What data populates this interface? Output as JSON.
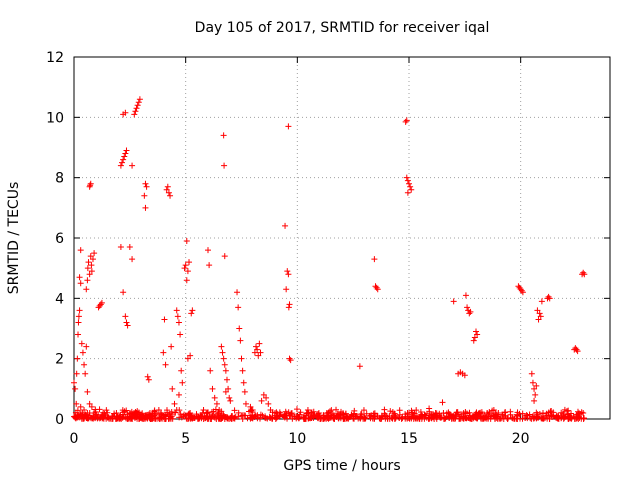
{
  "chart_data": {
    "type": "scatter",
    "title": "Day 105 of 2017, SRMTID for receiver iqal",
    "xlabel": "GPS time / hours",
    "ylabel": "SRMTID / TECUs",
    "xlim": [
      0,
      24
    ],
    "ylim": [
      0,
      12
    ],
    "xticks": [
      0,
      5,
      10,
      15,
      20
    ],
    "yticks": [
      0,
      2,
      4,
      6,
      8,
      10,
      12
    ],
    "grid": true,
    "legend": "none",
    "marker": "plus",
    "color": "#ff0000",
    "series": [
      {
        "points": [
          [
            0.0,
            1.2
          ],
          [
            0.05,
            1.0
          ],
          [
            0.1,
            0.5
          ],
          [
            0.12,
            1.5
          ],
          [
            0.15,
            2.0
          ],
          [
            0.18,
            2.8
          ],
          [
            0.2,
            3.2
          ],
          [
            0.22,
            3.4
          ],
          [
            0.25,
            3.6
          ],
          [
            0.3,
            4.5
          ],
          [
            0.25,
            4.7
          ],
          [
            0.3,
            5.6
          ],
          [
            0.35,
            2.5
          ],
          [
            0.4,
            2.2
          ],
          [
            0.45,
            1.8
          ],
          [
            0.5,
            1.5
          ],
          [
            0.55,
            2.4
          ],
          [
            0.3,
            0.4
          ],
          [
            0.45,
            0.3
          ],
          [
            0.6,
            0.2
          ],
          [
            0.55,
            4.3
          ],
          [
            0.6,
            4.6
          ],
          [
            0.62,
            5.0
          ],
          [
            0.65,
            5.2
          ],
          [
            0.7,
            4.8
          ],
          [
            0.75,
            5.4
          ],
          [
            0.78,
            5.1
          ],
          [
            0.8,
            4.9
          ],
          [
            0.85,
            5.3
          ],
          [
            0.9,
            5.5
          ],
          [
            0.7,
            7.7
          ],
          [
            0.72,
            7.75
          ],
          [
            0.75,
            7.8
          ],
          [
            0.6,
            0.9
          ],
          [
            0.7,
            0.5
          ],
          [
            0.8,
            0.4
          ],
          [
            0.9,
            0.2
          ],
          [
            1.0,
            0.15
          ],
          [
            1.1,
            3.7
          ],
          [
            1.15,
            3.75
          ],
          [
            1.2,
            3.8
          ],
          [
            1.25,
            3.85
          ],
          [
            1.3,
            0.1
          ],
          [
            1.5,
            0.05
          ],
          [
            1.7,
            0.1
          ],
          [
            1.9,
            0.2
          ],
          [
            2.1,
            8.4
          ],
          [
            2.15,
            8.5
          ],
          [
            2.2,
            8.6
          ],
          [
            2.25,
            8.7
          ],
          [
            2.3,
            8.8
          ],
          [
            2.35,
            8.9
          ],
          [
            2.2,
            10.1
          ],
          [
            2.3,
            10.15
          ],
          [
            2.1,
            5.7
          ],
          [
            2.2,
            4.2
          ],
          [
            2.3,
            3.4
          ],
          [
            2.35,
            3.2
          ],
          [
            2.4,
            3.1
          ],
          [
            2.5,
            5.7
          ],
          [
            2.6,
            8.4
          ],
          [
            2.6,
            5.3
          ],
          [
            2.7,
            10.1
          ],
          [
            2.75,
            10.2
          ],
          [
            2.8,
            10.3
          ],
          [
            2.85,
            10.4
          ],
          [
            2.9,
            10.5
          ],
          [
            2.95,
            10.6
          ],
          [
            2.2,
            0.15
          ],
          [
            2.5,
            0.1
          ],
          [
            2.8,
            0.2
          ],
          [
            3.0,
            0.15
          ],
          [
            3.2,
            7.8
          ],
          [
            3.25,
            7.7
          ],
          [
            3.15,
            7.4
          ],
          [
            3.2,
            7.0
          ],
          [
            3.3,
            1.4
          ],
          [
            3.35,
            1.3
          ],
          [
            3.4,
            0.2
          ],
          [
            3.6,
            0.25
          ],
          [
            3.8,
            0.3
          ],
          [
            3.9,
            0.2
          ],
          [
            4.0,
            2.2
          ],
          [
            4.05,
            3.3
          ],
          [
            4.1,
            1.8
          ],
          [
            4.15,
            7.6
          ],
          [
            4.2,
            7.7
          ],
          [
            4.25,
            7.5
          ],
          [
            4.3,
            7.4
          ],
          [
            4.35,
            2.4
          ],
          [
            4.4,
            1.0
          ],
          [
            4.5,
            0.5
          ],
          [
            4.6,
            3.6
          ],
          [
            4.65,
            3.4
          ],
          [
            4.7,
            3.2
          ],
          [
            4.75,
            2.8
          ],
          [
            4.8,
            1.6
          ],
          [
            4.85,
            1.2
          ],
          [
            4.6,
            0.3
          ],
          [
            4.7,
            0.8
          ],
          [
            4.95,
            5.0
          ],
          [
            5.0,
            5.1
          ],
          [
            5.05,
            5.9
          ],
          [
            5.1,
            4.9
          ],
          [
            5.15,
            5.2
          ],
          [
            5.05,
            4.6
          ],
          [
            5.1,
            2.0
          ],
          [
            5.2,
            2.1
          ],
          [
            5.25,
            3.5
          ],
          [
            5.3,
            3.6
          ],
          [
            5.2,
            0.2
          ],
          [
            5.5,
            0.1
          ],
          [
            5.8,
            0.3
          ],
          [
            6.0,
            5.6
          ],
          [
            6.05,
            5.1
          ],
          [
            6.1,
            1.6
          ],
          [
            6.2,
            1.0
          ],
          [
            6.3,
            0.7
          ],
          [
            6.4,
            0.5
          ],
          [
            6.5,
            0.3
          ],
          [
            6.6,
            2.4
          ],
          [
            6.65,
            2.2
          ],
          [
            6.7,
            2.0
          ],
          [
            6.75,
            1.8
          ],
          [
            6.8,
            1.6
          ],
          [
            6.85,
            1.3
          ],
          [
            6.9,
            1.0
          ],
          [
            6.95,
            0.7
          ],
          [
            6.7,
            9.4
          ],
          [
            6.72,
            8.4
          ],
          [
            6.75,
            5.4
          ],
          [
            6.8,
            0.9
          ],
          [
            7.0,
            0.6
          ],
          [
            7.3,
            4.2
          ],
          [
            7.35,
            3.7
          ],
          [
            7.4,
            3.0
          ],
          [
            7.45,
            2.6
          ],
          [
            7.5,
            2.0
          ],
          [
            7.55,
            1.6
          ],
          [
            7.6,
            1.2
          ],
          [
            7.65,
            0.9
          ],
          [
            7.7,
            0.5
          ],
          [
            7.9,
            0.4
          ],
          [
            8.0,
            0.3
          ],
          [
            8.1,
            2.2
          ],
          [
            8.15,
            2.4
          ],
          [
            8.2,
            2.3
          ],
          [
            8.25,
            2.1
          ],
          [
            8.3,
            2.5
          ],
          [
            8.35,
            2.2
          ],
          [
            8.4,
            0.6
          ],
          [
            8.5,
            0.8
          ],
          [
            8.6,
            0.7
          ],
          [
            8.7,
            0.5
          ],
          [
            8.8,
            0.3
          ],
          [
            9.0,
            0.2
          ],
          [
            9.2,
            0.1
          ],
          [
            9.45,
            6.4
          ],
          [
            9.5,
            4.3
          ],
          [
            9.55,
            4.9
          ],
          [
            9.6,
            4.8
          ],
          [
            9.65,
            3.8
          ],
          [
            9.62,
            3.7
          ],
          [
            9.6,
            9.7
          ],
          [
            9.65,
            2.0
          ],
          [
            9.7,
            1.95
          ],
          [
            9.7,
            0.1
          ],
          [
            10.0,
            0.08
          ],
          [
            10.3,
            0.1
          ],
          [
            10.6,
            0.05
          ],
          [
            11.0,
            0.1
          ],
          [
            11.4,
            0.05
          ],
          [
            11.8,
            0.1
          ],
          [
            12.2,
            0.08
          ],
          [
            12.6,
            0.1
          ],
          [
            12.8,
            1.75
          ],
          [
            13.0,
            0.05
          ],
          [
            13.3,
            0.1
          ],
          [
            13.45,
            5.3
          ],
          [
            13.5,
            4.4
          ],
          [
            13.55,
            4.35
          ],
          [
            13.6,
            4.3
          ],
          [
            13.6,
            0.1
          ],
          [
            14.0,
            0.08
          ],
          [
            14.4,
            0.1
          ],
          [
            14.85,
            9.85
          ],
          [
            14.9,
            9.9
          ],
          [
            14.9,
            8.0
          ],
          [
            14.95,
            7.9
          ],
          [
            15.0,
            7.8
          ],
          [
            15.05,
            7.7
          ],
          [
            15.1,
            7.6
          ],
          [
            14.95,
            7.5
          ],
          [
            15.2,
            0.1
          ],
          [
            15.6,
            0.08
          ],
          [
            15.9,
            0.35
          ],
          [
            16.2,
            0.1
          ],
          [
            16.5,
            0.55
          ],
          [
            16.8,
            0.1
          ],
          [
            17.0,
            3.9
          ],
          [
            17.2,
            1.5
          ],
          [
            17.3,
            1.55
          ],
          [
            17.4,
            1.5
          ],
          [
            17.5,
            1.45
          ],
          [
            17.55,
            4.1
          ],
          [
            17.6,
            3.7
          ],
          [
            17.65,
            3.6
          ],
          [
            17.7,
            3.5
          ],
          [
            17.75,
            3.55
          ],
          [
            17.9,
            2.6
          ],
          [
            17.95,
            2.7
          ],
          [
            18.0,
            2.9
          ],
          [
            18.05,
            2.8
          ],
          [
            18.2,
            0.1
          ],
          [
            18.5,
            0.2
          ],
          [
            18.8,
            0.3
          ],
          [
            19.0,
            0.2
          ],
          [
            19.3,
            0.1
          ],
          [
            19.9,
            4.4
          ],
          [
            19.95,
            4.35
          ],
          [
            20.0,
            4.3
          ],
          [
            20.05,
            4.25
          ],
          [
            20.1,
            4.2
          ],
          [
            20.2,
            0.1
          ],
          [
            20.4,
            0.15
          ],
          [
            20.5,
            1.5
          ],
          [
            20.55,
            1.2
          ],
          [
            20.6,
            1.0
          ],
          [
            20.65,
            0.8
          ],
          [
            20.7,
            1.1
          ],
          [
            20.6,
            0.6
          ],
          [
            20.8,
            3.3
          ],
          [
            20.85,
            3.5
          ],
          [
            20.9,
            3.4
          ],
          [
            20.95,
            3.9
          ],
          [
            20.75,
            3.6
          ],
          [
            21.2,
            4.0
          ],
          [
            21.25,
            4.05
          ],
          [
            21.3,
            4.0
          ],
          [
            21.0,
            0.2
          ],
          [
            21.4,
            0.1
          ],
          [
            21.8,
            0.1
          ],
          [
            22.1,
            0.15
          ],
          [
            22.4,
            2.3
          ],
          [
            22.45,
            2.35
          ],
          [
            22.5,
            2.3
          ],
          [
            22.55,
            2.25
          ],
          [
            22.6,
            0.1
          ],
          [
            22.75,
            4.8
          ],
          [
            22.8,
            4.85
          ],
          [
            22.85,
            4.8
          ],
          [
            22.8,
            0.2
          ]
        ]
      }
    ]
  }
}
